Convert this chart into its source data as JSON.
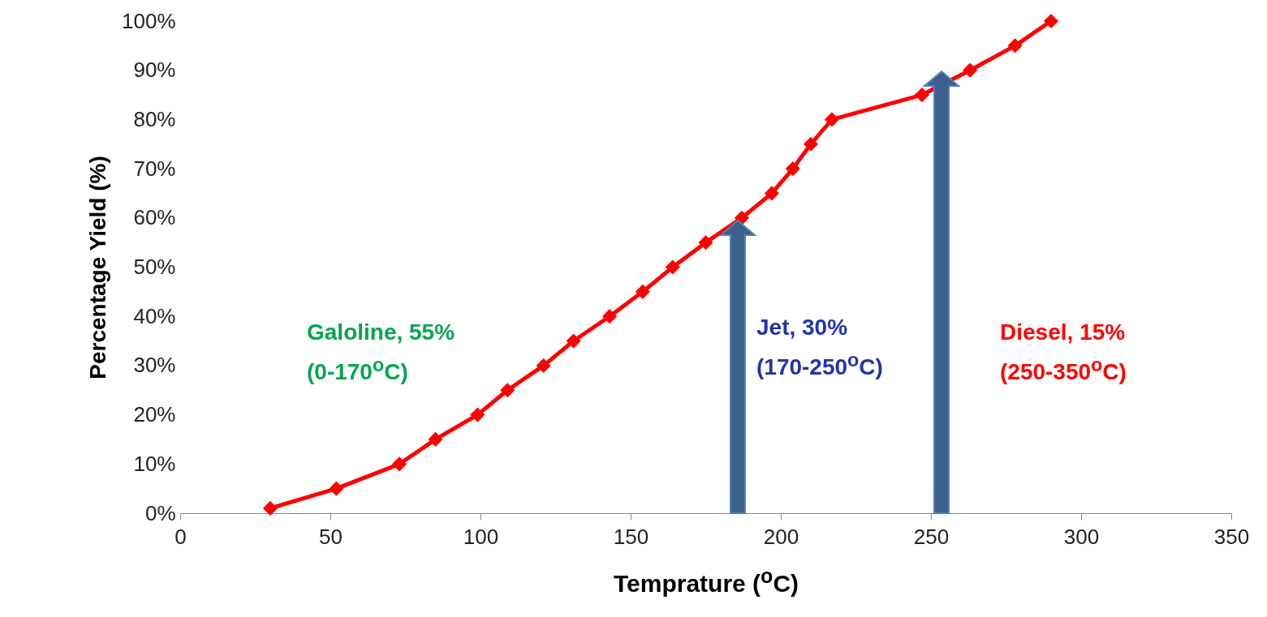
{
  "chart_data": {
    "type": "line",
    "x": [
      30,
      52,
      73,
      85,
      99,
      109,
      121,
      131,
      143,
      154,
      164,
      175,
      187,
      197,
      204,
      210,
      217,
      247,
      263,
      278,
      290
    ],
    "series": [
      {
        "color": "#ff0000",
        "values": [
          1,
          5,
          10,
          15,
          20,
          25,
          30,
          35,
          40,
          45,
          50,
          55,
          60,
          65,
          70,
          75,
          80,
          85,
          90,
          95,
          100
        ]
      }
    ],
    "xlabel": "Temprature ($^{o}$C)",
    "ylabel": "Percentage Yield (%)",
    "xlim": [
      0,
      350
    ],
    "xticks": [
      0,
      50,
      100,
      150,
      200,
      250,
      300,
      350
    ],
    "ylim": [
      0,
      100
    ],
    "yticks": [
      {
        "value": 0,
        "label": "0%"
      },
      {
        "value": 10,
        "label": "10%"
      },
      {
        "value": 20,
        "label": "20%"
      },
      {
        "value": 30,
        "label": "30%"
      },
      {
        "value": 40,
        "label": "40%"
      },
      {
        "value": 50,
        "label": "50%"
      },
      {
        "value": 60,
        "label": "60%"
      },
      {
        "value": 70,
        "label": "70%"
      },
      {
        "value": 80,
        "label": "80%"
      },
      {
        "value": 90,
        "label": "90%"
      },
      {
        "value": 100,
        "label": "100%"
      }
    ],
    "annotations": [
      "Galoline, 55%\n(0-170$^{o}$C)",
      "Jet, 30%\n(170-250$^{o}$C)",
      "Diesel, 15%\n(250-350$^{o}$C)"
    ],
    "marker": "diamond",
    "grid": false,
    "line_style": "solid"
  }
}
